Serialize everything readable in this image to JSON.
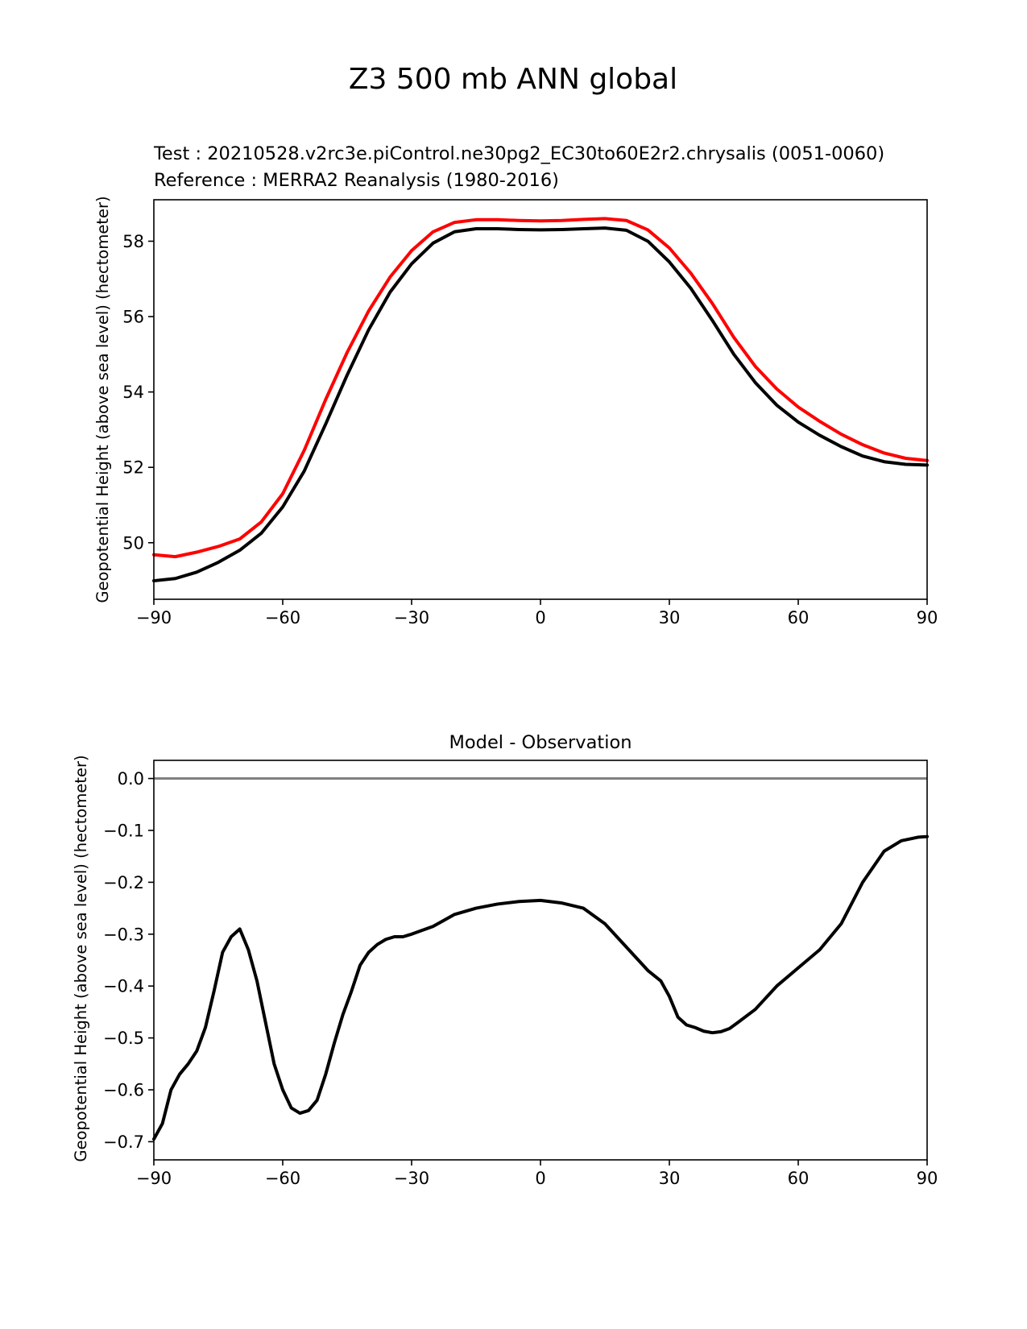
{
  "figure": {
    "suptitle": "Z3 500 mb ANN global",
    "colors": {
      "test": "#000000",
      "reference": "#ff0000",
      "zero_line": "#808080"
    }
  },
  "chart_data": [
    {
      "type": "line",
      "test_label": "Test : 20210528.v2rc3e.piControl.ne30pg2_EC30to60E2r2.chrysalis (0051-0060)",
      "reference_label": "Reference : MERRA2 Reanalysis (1980-2016)",
      "xlabel": "",
      "ylabel": "Geopotential Height (above sea level) (hectometer)",
      "xlim": [
        -90,
        90
      ],
      "ylim": [
        48.5,
        59.1
      ],
      "xticks": [
        -90,
        -60,
        -30,
        0,
        30,
        60,
        90
      ],
      "xtick_labels": [
        "−90",
        "−60",
        "−30",
        "0",
        "30",
        "60",
        "90"
      ],
      "yticks": [
        50,
        52,
        54,
        56,
        58
      ],
      "ytick_labels": [
        "50",
        "52",
        "54",
        "56",
        "58"
      ],
      "x": [
        -90,
        -85,
        -80,
        -75,
        -70,
        -65,
        -60,
        -55,
        -50,
        -45,
        -40,
        -35,
        -30,
        -25,
        -20,
        -15,
        -10,
        -5,
        0,
        5,
        10,
        15,
        20,
        25,
        30,
        35,
        40,
        45,
        50,
        55,
        60,
        65,
        70,
        75,
        80,
        85,
        90
      ],
      "series": [
        {
          "name": "Test",
          "color": "#000000",
          "values": [
            48.99,
            49.05,
            49.22,
            49.48,
            49.8,
            50.25,
            50.95,
            51.9,
            53.15,
            54.45,
            55.65,
            56.65,
            57.4,
            57.95,
            58.25,
            58.33,
            58.33,
            58.31,
            58.3,
            58.31,
            58.33,
            58.35,
            58.29,
            58.0,
            57.45,
            56.75,
            55.9,
            55.0,
            54.25,
            53.65,
            53.2,
            52.85,
            52.55,
            52.3,
            52.15,
            52.08,
            52.06
          ]
        },
        {
          "name": "Reference",
          "color": "#ff0000",
          "values": [
            49.68,
            49.63,
            49.75,
            49.9,
            50.1,
            50.55,
            51.3,
            52.45,
            53.8,
            55.05,
            56.15,
            57.05,
            57.75,
            58.25,
            58.5,
            58.57,
            58.57,
            58.55,
            58.54,
            58.55,
            58.58,
            58.6,
            58.55,
            58.3,
            57.82,
            57.15,
            56.35,
            55.45,
            54.68,
            54.08,
            53.6,
            53.22,
            52.88,
            52.6,
            52.38,
            52.24,
            52.18
          ]
        }
      ]
    },
    {
      "type": "line",
      "title": "Model - Observation",
      "xlabel": "",
      "ylabel": "Geopotential Height (above sea level) (hectometer)",
      "xlim": [
        -90,
        90
      ],
      "ylim": [
        -0.735,
        0.035
      ],
      "xticks": [
        -90,
        -60,
        -30,
        0,
        30,
        60,
        90
      ],
      "xtick_labels": [
        "−90",
        "−60",
        "−30",
        "0",
        "30",
        "60",
        "90"
      ],
      "yticks": [
        0.0,
        -0.1,
        -0.2,
        -0.3,
        -0.4,
        -0.5,
        -0.6,
        -0.7
      ],
      "ytick_labels": [
        "0.0",
        "−0.1",
        "−0.2",
        "−0.3",
        "−0.4",
        "−0.5",
        "−0.6",
        "−0.7"
      ],
      "zero_line": 0.0,
      "x": [
        -90,
        -88,
        -86,
        -84,
        -82,
        -80,
        -78,
        -76,
        -74,
        -72,
        -70,
        -68,
        -66,
        -64,
        -62,
        -60,
        -58,
        -56,
        -54,
        -52,
        -50,
        -48,
        -46,
        -44,
        -42,
        -40,
        -38,
        -36,
        -34,
        -32,
        -30,
        -25,
        -20,
        -15,
        -10,
        -5,
        0,
        5,
        10,
        15,
        20,
        25,
        28,
        30,
        32,
        34,
        36,
        38,
        40,
        42,
        44,
        46,
        50,
        55,
        60,
        65,
        70,
        75,
        80,
        84,
        88,
        90
      ],
      "series": [
        {
          "name": "Model - Observation",
          "color": "#000000",
          "values": [
            -0.695,
            -0.665,
            -0.6,
            -0.57,
            -0.55,
            -0.525,
            -0.48,
            -0.41,
            -0.335,
            -0.305,
            -0.29,
            -0.33,
            -0.39,
            -0.47,
            -0.55,
            -0.6,
            -0.635,
            -0.645,
            -0.64,
            -0.62,
            -0.57,
            -0.51,
            -0.455,
            -0.41,
            -0.36,
            -0.335,
            -0.32,
            -0.31,
            -0.305,
            -0.305,
            -0.3,
            -0.285,
            -0.262,
            -0.25,
            -0.242,
            -0.237,
            -0.235,
            -0.24,
            -0.25,
            -0.28,
            -0.325,
            -0.37,
            -0.39,
            -0.42,
            -0.46,
            -0.475,
            -0.48,
            -0.487,
            -0.49,
            -0.488,
            -0.482,
            -0.47,
            -0.445,
            -0.4,
            -0.365,
            -0.33,
            -0.28,
            -0.2,
            -0.14,
            -0.12,
            -0.113,
            -0.112
          ]
        }
      ]
    }
  ]
}
